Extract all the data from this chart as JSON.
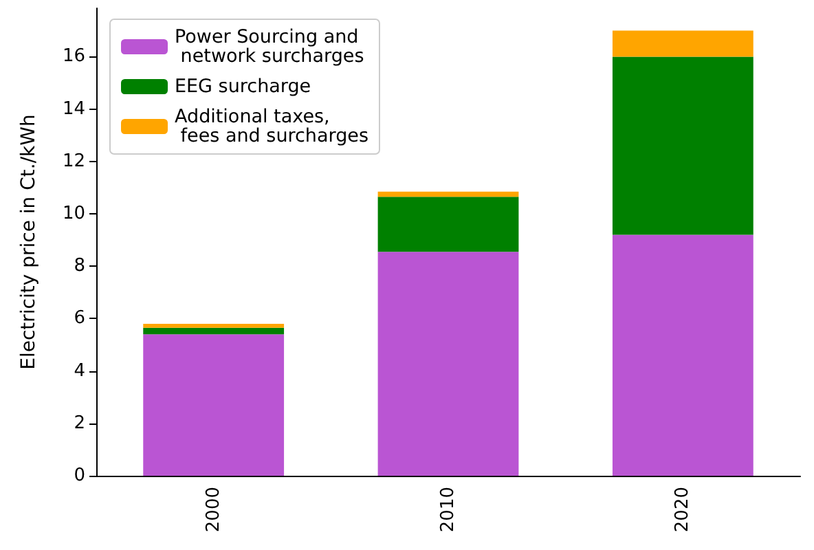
{
  "chart_data": {
    "type": "bar",
    "ylabel": "Electricity price in Ct./kWh",
    "categories": [
      "2000",
      "2010",
      "2020"
    ],
    "series": [
      {
        "name": "Power Sourcing and\n network surcharges",
        "color": "#ba55d3",
        "values": [
          5.4,
          8.55,
          9.2
        ]
      },
      {
        "name": "EEG surcharge",
        "color": "#008000",
        "values": [
          0.25,
          2.1,
          6.8
        ]
      },
      {
        "name": "Additional taxes,\n fees and surcharges",
        "color": "#ffa500",
        "values": [
          0.15,
          0.2,
          1.0
        ]
      }
    ],
    "stacked": true,
    "ylim": [
      0,
      17.85
    ],
    "yticks": [
      0,
      2,
      4,
      6,
      8,
      10,
      12,
      14,
      16
    ],
    "grid": false,
    "legend": "top left"
  }
}
